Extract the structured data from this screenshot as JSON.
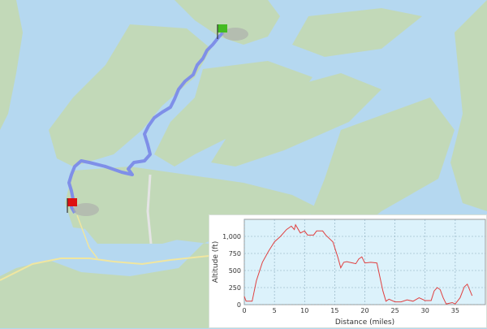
{
  "map": {
    "colors": {
      "water": "#b5d8f0",
      "land": "#c2d9b8",
      "route": "#7f8fe8",
      "road": "#f0e6a0"
    },
    "markers": [
      {
        "name": "start-flag",
        "color": "#44bb22"
      },
      {
        "name": "end-flag",
        "color": "#dd1111"
      }
    ]
  },
  "chart_data": {
    "type": "line",
    "title": "",
    "xlabel": "Distance (miles)",
    "ylabel": "Altitude (ft)",
    "xlim": [
      0,
      40
    ],
    "ylim": [
      0,
      1250
    ],
    "xticks": [
      0,
      5,
      10,
      15,
      20,
      25,
      30,
      35
    ],
    "xtick_labels": [
      "0",
      "5",
      "10",
      "15",
      "20",
      "25",
      "30",
      "35"
    ],
    "yticks": [
      0,
      250,
      500,
      750,
      1000
    ],
    "ytick_labels": [
      "0",
      "250",
      "500",
      "750",
      "1,000"
    ],
    "grid": true,
    "line_color": "#e04040",
    "background": "#dcf2fb",
    "series": [
      {
        "x": [
          0,
          0.3,
          1.3,
          2,
          3,
          4,
          5,
          6,
          7,
          7.8,
          8.3,
          8.5,
          9.3,
          10,
          10.5,
          11.5,
          12,
          13,
          13.5,
          14.7,
          15.5,
          16,
          16.5,
          17,
          18,
          18.5,
          19,
          19.5,
          20,
          21,
          22,
          23,
          23.5,
          24,
          25,
          26,
          27,
          28,
          29,
          30,
          31,
          31.5,
          32,
          32.5,
          33,
          33.5,
          34.5,
          35,
          35.8,
          36.5,
          37,
          37.8
        ],
        "y": [
          120,
          50,
          50,
          350,
          620,
          780,
          920,
          1000,
          1100,
          1150,
          1100,
          1170,
          1050,
          1080,
          1020,
          1020,
          1080,
          1080,
          1020,
          920,
          700,
          540,
          620,
          630,
          610,
          600,
          670,
          700,
          610,
          620,
          610,
          200,
          50,
          80,
          40,
          40,
          70,
          50,
          100,
          60,
          60,
          200,
          250,
          220,
          100,
          10,
          30,
          10,
          100,
          260,
          300,
          130
        ]
      }
    ]
  }
}
